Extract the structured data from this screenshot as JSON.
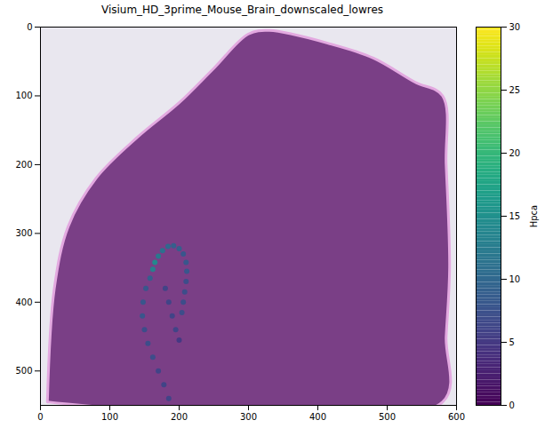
{
  "chart_data": {
    "type": "scatter",
    "title": "Visium_HD_3prime_Mouse_Brain_downscaled_lowres",
    "xlim": [
      0,
      600
    ],
    "xticks": [
      0,
      100,
      200,
      300,
      400,
      500,
      600
    ],
    "ylim": [
      550,
      0
    ],
    "yticks": [
      0,
      100,
      200,
      300,
      400,
      500
    ],
    "tissue_outline": {
      "x": [
        10,
        20,
        40,
        80,
        140,
        200,
        250,
        300,
        330,
        420,
        480,
        540,
        580,
        585,
        590,
        585,
        580
      ],
      "y": [
        545,
        380,
        290,
        220,
        160,
        110,
        60,
        10,
        5,
        25,
        45,
        80,
        100,
        200,
        350,
        450,
        545
      ]
    },
    "x": [
      162,
      165,
      170,
      176,
      184,
      192,
      200,
      206,
      210,
      211,
      210,
      208,
      206,
      204,
      158,
      152,
      148,
      147,
      150,
      155,
      162,
      170,
      178,
      185,
      180,
      185,
      190,
      195,
      200
    ],
    "y": [
      352,
      342,
      333,
      325,
      319,
      318,
      322,
      330,
      342,
      355,
      370,
      385,
      400,
      415,
      365,
      380,
      400,
      420,
      440,
      460,
      480,
      500,
      520,
      540,
      380,
      400,
      420,
      440,
      455
    ],
    "values": [
      13,
      14,
      12,
      11,
      10,
      9,
      9,
      8,
      8,
      8,
      7,
      7,
      7,
      7,
      9,
      8,
      8,
      8,
      7,
      7,
      7,
      6,
      6,
      6,
      6,
      6,
      6,
      6,
      5
    ],
    "colorbar_label": "Hpca",
    "colorbar_range": [
      0,
      30
    ],
    "colorbar_ticks": [
      0,
      5,
      10,
      15,
      20,
      25,
      30
    ]
  }
}
